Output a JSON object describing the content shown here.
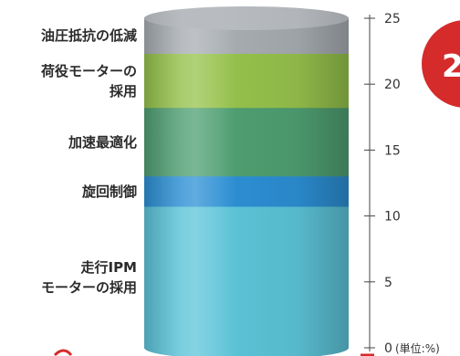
{
  "chart_data": {
    "type": "bar",
    "stacked": true,
    "categories": [
      "走行IPMモーターの採用",
      "旋回制御",
      "加速最適化",
      "荷役モーターの採用",
      "油圧抵抗の低減"
    ],
    "segments": [
      {
        "label_lines": [
          "走行IPM",
          "モーターの採用"
        ],
        "from": 0,
        "to": 10.7,
        "color": "#5cc4d8"
      },
      {
        "label_lines": [
          "旋回制御"
        ],
        "from": 10.7,
        "to": 13,
        "color": "#2c8fd4"
      },
      {
        "label_lines": [
          "加速最適化"
        ],
        "from": 13,
        "to": 18.2,
        "color": "#4f9f72"
      },
      {
        "label_lines": [
          "荷役モーターの",
          "採用"
        ],
        "from": 18.2,
        "to": 22.3,
        "color": "#96c24c"
      },
      {
        "label_lines": [
          "油圧抵抗の低減"
        ],
        "from": 22.3,
        "to": 25,
        "color": "#a8adb2"
      }
    ],
    "ylim": [
      0,
      25
    ],
    "yticks": [
      0,
      5,
      10,
      15,
      20,
      25
    ],
    "unit_label": "(単位:%)"
  },
  "badge": {
    "text": "2",
    "color": "#d52b2b"
  }
}
